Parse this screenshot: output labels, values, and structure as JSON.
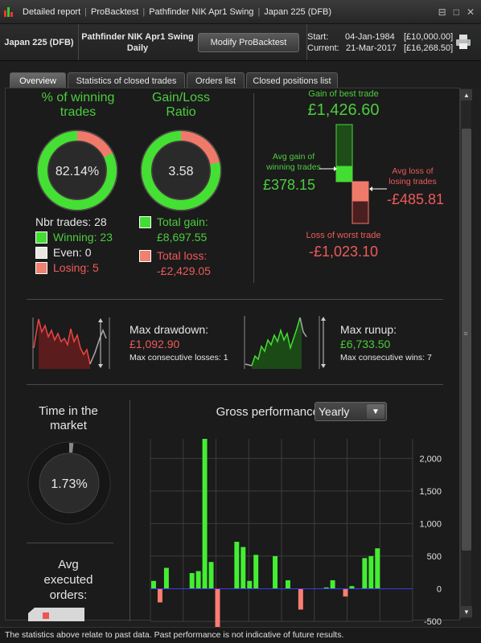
{
  "titlebar": {
    "crumbs": [
      "Detailed report",
      "ProBacktest",
      "Pathfinder NIK Apr1 Swing",
      "Japan 225 (DFB)"
    ],
    "buttons": [
      "⊟",
      "□",
      "✕"
    ]
  },
  "header": {
    "instrument": "Japan 225 (DFB)",
    "system_name": "Pathfinder NIK Apr1 Swing",
    "period": "Daily",
    "modify_label": "Modify ProBacktest",
    "start_label": "Start:",
    "start_date": "04-Jan-1984",
    "start_capital": "[£10,000.00]",
    "current_label": "Current:",
    "current_date": "21-Mar-2017",
    "current_capital": "[£16,268.50]"
  },
  "tabs": [
    "Overview",
    "Statistics of closed trades",
    "Orders list",
    "Closed positions list"
  ],
  "winning": {
    "title_line1": "% of winning",
    "title_line2": "trades",
    "value": "82.14%",
    "fraction": 0.8214,
    "nbr_trades": "Nbr trades: 28",
    "winning": "Winning: 23",
    "even": "Even: 0",
    "losing": "Losing: 5"
  },
  "gainloss": {
    "title_line1": "Gain/Loss",
    "title_line2": "Ratio",
    "value": "3.58",
    "fraction": 0.7817,
    "total_gain_label": "Total gain:",
    "total_gain": "£8,697.55",
    "total_loss_label": "Total loss:",
    "total_loss": "-£2,429.05"
  },
  "trades": {
    "best_label": "Gain of best trade",
    "best_value": "£1,426.60",
    "avg_gain_label_1": "Avg gain of",
    "avg_gain_label_2": "winning trades",
    "avg_gain_value": "£378.15",
    "avg_loss_label_1": "Avg loss of",
    "avg_loss_label_2": "losing trades",
    "avg_loss_value": "-£485.81",
    "worst_label": "Loss of worst trade",
    "worst_value": "-£1,023.10"
  },
  "drawdown": {
    "label": "Max drawdown:",
    "value": "£1,092.90",
    "consecutive": "Max consecutive losses: 1"
  },
  "runup": {
    "label": "Max runup:",
    "value": "£6,733.50",
    "consecutive": "Max consecutive wins: 7"
  },
  "market": {
    "title_line1": "Time in the",
    "title_line2": "market",
    "value": "1.73%",
    "fraction": 0.0173
  },
  "orders": {
    "title_line1": "Avg",
    "title_line2": "executed",
    "title_line3": "orders:"
  },
  "gross": {
    "title": "Gross performance",
    "period": "Yearly"
  },
  "colors": {
    "green": "#44dd33",
    "red": "#ee6060",
    "pink": "#f08070",
    "dark_bg": "#1b1b1b"
  },
  "chart_data": {
    "type": "bar",
    "title": "Gross performance",
    "ylim": [
      -500,
      2300
    ],
    "yticks": [
      "2,000",
      "1,500",
      "1,000",
      "500",
      "0",
      "-500"
    ],
    "ytick_values": [
      2000,
      1500,
      1000,
      500,
      0,
      -500
    ],
    "values": [
      120,
      -210,
      320,
      0,
      0,
      0,
      240,
      270,
      2300,
      410,
      -640,
      0,
      0,
      720,
      640,
      120,
      520,
      0,
      0,
      500,
      0,
      130,
      0,
      -320,
      0,
      0,
      0,
      20,
      130,
      0,
      -120,
      40,
      0,
      470,
      500,
      620,
      0,
      0,
      0,
      0,
      0
    ],
    "grid": true
  },
  "footer": "The statistics above relate to past data. Past performance is not indicative of future results."
}
